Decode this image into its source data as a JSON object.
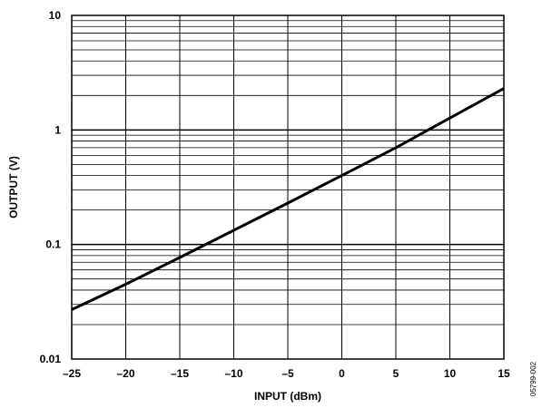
{
  "chart_data": {
    "type": "line",
    "title": "",
    "xlabel": "INPUT (dBm)",
    "ylabel": "OUTPUT (V)",
    "xlim": [
      -25,
      15
    ],
    "ylim": [
      0.01,
      10
    ],
    "yscale": "log",
    "grid": true,
    "x_ticks": [
      -25,
      -20,
      -15,
      -10,
      -5,
      0,
      5,
      10,
      15
    ],
    "x_tick_labels": [
      "–25",
      "–20",
      "–15",
      "–10",
      "–5",
      "0",
      "5",
      "10",
      "15"
    ],
    "y_ticks": [
      0.01,
      0.1,
      1,
      10
    ],
    "y_tick_labels": [
      "0.01",
      "0.1",
      "1",
      "10"
    ],
    "series": [
      {
        "name": "",
        "x": [
          -25,
          -20,
          -15,
          -10,
          -5,
          0,
          5,
          10,
          15
        ],
        "y": [
          0.027,
          0.045,
          0.077,
          0.133,
          0.23,
          0.4,
          0.7,
          1.27,
          2.3
        ]
      }
    ]
  },
  "figure_note": "05799-002"
}
